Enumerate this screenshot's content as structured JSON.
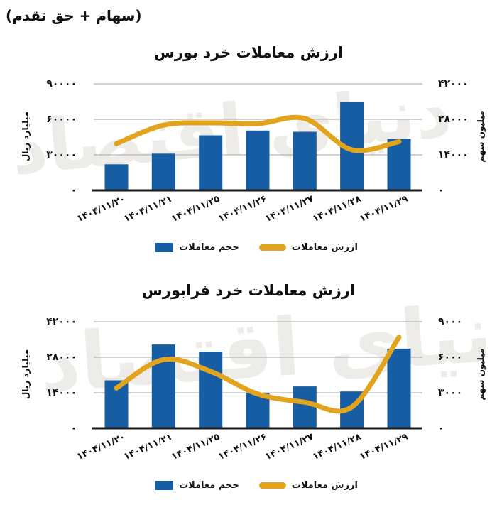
{
  "header": {
    "subtitle": "(سهام + حق تقدم)"
  },
  "watermark_text": "دنیای اقتصاد",
  "colors": {
    "bar": "#175DA4",
    "line": "#E2A41D",
    "grid": "#a6a6a6",
    "axis": "#1a1a1a"
  },
  "chart_data": [
    {
      "type": "bar+line",
      "title": "ارزش معاملات خرد بورس",
      "categories": [
        "۱۴۰۴/۱۱/۲۰",
        "۱۴۰۴/۱۱/۲۱",
        "۱۴۰۴/۱۱/۲۵",
        "۱۴۰۴/۱۱/۲۶",
        "۱۴۰۴/۱۱/۲۷",
        "۱۴۰۴/۱۱/۲۸",
        "۱۴۰۴/۱۱/۲۹"
      ],
      "series": [
        {
          "name": "حجم معاملات",
          "type": "bar",
          "axis": "left",
          "values": [
            22000,
            31000,
            46500,
            50500,
            49500,
            74500,
            43500
          ]
        },
        {
          "name": "ارزش معاملات",
          "type": "line",
          "axis": "right",
          "values": [
            18400,
            25700,
            26600,
            26300,
            28300,
            16000,
            19200
          ]
        }
      ],
      "left_axis": {
        "label": "میلیارد ریال",
        "range": [
          0,
          90000
        ],
        "ticks": [
          "۹۰۰۰۰",
          "۶۰۰۰۰",
          "۳۰۰۰۰",
          "۰"
        ]
      },
      "right_axis": {
        "label": "میلیون سهم",
        "range": [
          0,
          42000
        ],
        "ticks": [
          "۴۲۰۰۰",
          "۲۸۰۰۰",
          "۱۴۰۰۰",
          "۰"
        ]
      },
      "grid": true,
      "legend_position": "bottom"
    },
    {
      "type": "bar+line",
      "title": "ارزش معاملات خرد فرابورس",
      "categories": [
        "۱۴۰۴/۱۱/۲۰",
        "۱۴۰۴/۱۱/۲۱",
        "۱۴۰۴/۱۱/۲۵",
        "۱۴۰۴/۱۱/۲۶",
        "۱۴۰۴/۱۱/۲۷",
        "۱۴۰۴/۱۱/۲۸",
        "۱۴۰۴/۱۱/۲۹"
      ],
      "series": [
        {
          "name": "حجم معاملات",
          "type": "bar",
          "axis": "left",
          "values": [
            18900,
            33000,
            30200,
            14000,
            16500,
            14500,
            31400
          ]
        },
        {
          "name": "ارزش معاملات",
          "type": "line",
          "axis": "right",
          "values": [
            3400,
            5800,
            4800,
            2900,
            2200,
            1800,
            7700
          ]
        }
      ],
      "left_axis": {
        "label": "میلیارد ریال",
        "range": [
          0,
          42000
        ],
        "ticks": [
          "۴۲۰۰۰",
          "۲۸۰۰۰",
          "۱۴۰۰۰",
          "۰"
        ]
      },
      "right_axis": {
        "label": "میلیون سهم",
        "range": [
          0,
          9000
        ],
        "ticks": [
          "۹۰۰۰",
          "۶۰۰۰",
          "۳۰۰۰",
          "۰"
        ]
      },
      "grid": true,
      "legend_position": "bottom"
    }
  ]
}
